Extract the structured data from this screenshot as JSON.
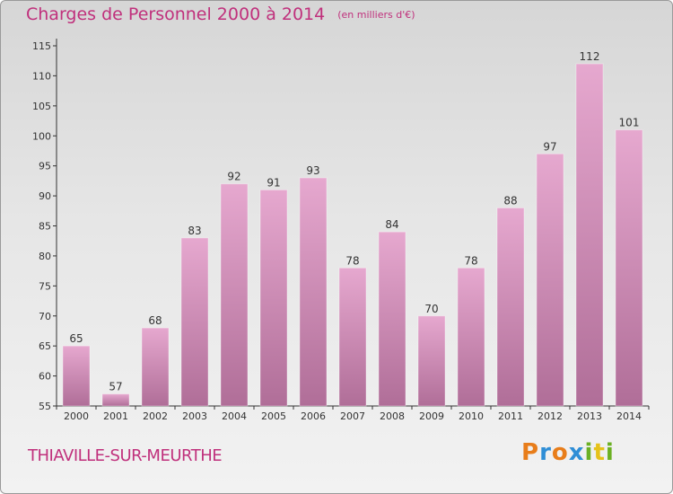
{
  "header": {
    "title": "Charges de Personnel 2000 à 2014",
    "subtitle": "(en milliers d'€)"
  },
  "footer": {
    "commune": "THIAVILLE-SUR-MEURTHE",
    "logo_letters": [
      "P",
      "r",
      "o",
      "x",
      "i",
      "t",
      "i"
    ],
    "logo_colors": [
      "#e87d1a",
      "#2f8ed6",
      "#e87d1a",
      "#2f8ed6",
      "#6bb023",
      "#e6c21a",
      "#6bb023"
    ]
  },
  "colors": {
    "bar_top": "#e6a8cf",
    "bar_bottom": "#b06e98",
    "text": "#c0307c"
  },
  "chart_data": {
    "type": "bar",
    "title": "Charges de Personnel 2000 à 2014",
    "subtitle": "(en milliers d'€)",
    "xlabel": "",
    "ylabel": "",
    "categories": [
      "2000",
      "2001",
      "2002",
      "2003",
      "2004",
      "2005",
      "2006",
      "2007",
      "2008",
      "2009",
      "2010",
      "2011",
      "2012",
      "2013",
      "2014"
    ],
    "values": [
      65,
      57,
      68,
      83,
      92,
      91,
      93,
      78,
      84,
      70,
      78,
      88,
      97,
      112,
      101
    ],
    "ylim": [
      55,
      115
    ],
    "yticks": [
      55,
      60,
      65,
      70,
      75,
      80,
      85,
      90,
      95,
      100,
      105,
      110,
      115
    ],
    "grid": false,
    "legend": "none"
  }
}
